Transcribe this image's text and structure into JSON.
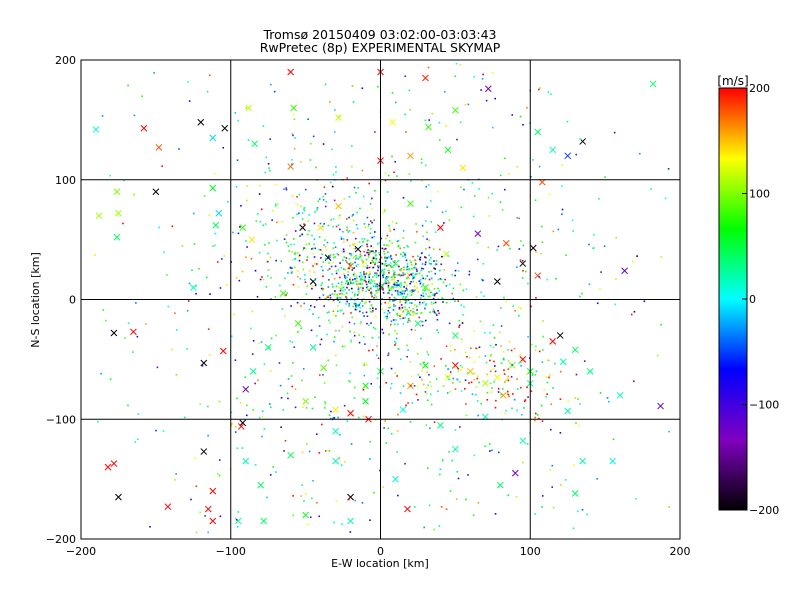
{
  "chart_data": {
    "type": "scatter",
    "title": "Tromsø 20150409 03:02:00-03:03:43",
    "subtitle": "RwPretec (8p) EXPERIMENTAL SKYMAP",
    "xlabel": "E-W location [km]",
    "ylabel": "N-S location [km]",
    "xlim": [
      -200,
      200
    ],
    "ylim": [
      -200,
      200
    ],
    "x_ticks": [
      -200,
      -100,
      0,
      100,
      200
    ],
    "y_ticks": [
      -200,
      -100,
      0,
      100,
      200
    ],
    "x_tick_labels": [
      "−200",
      "−100",
      "0",
      "100",
      "200"
    ],
    "y_tick_labels": [
      "−200",
      "−100",
      "0",
      "100",
      "200"
    ],
    "grid": true,
    "marker_types": [
      "dot",
      "x"
    ],
    "colorbar": {
      "label": "[m/s]",
      "range": [
        -200,
        200
      ],
      "ticks": [
        200,
        100,
        0,
        -100,
        -200
      ],
      "tick_labels": [
        "200",
        "100",
        "0",
        "−100",
        "−200"
      ],
      "colors": [
        "#000000",
        "#8000c0",
        "#0000ff",
        "#00ffff",
        "#00ff00",
        "#ffff00",
        "#ff0000"
      ]
    },
    "points": [
      {
        "x": -188,
        "y": 70,
        "v": 110,
        "m": "x"
      },
      {
        "x": -176,
        "y": 90,
        "v": 100,
        "m": "x"
      },
      {
        "x": -175,
        "y": 72,
        "v": 110,
        "m": "x"
      },
      {
        "x": -176,
        "y": 52,
        "v": 40,
        "m": "x"
      },
      {
        "x": -190,
        "y": 142,
        "v": 10,
        "m": "x"
      },
      {
        "x": -158,
        "y": 143,
        "v": 200,
        "m": "x"
      },
      {
        "x": -148,
        "y": 127,
        "v": 180,
        "m": "x"
      },
      {
        "x": -112,
        "y": 135,
        "v": -10,
        "m": "x"
      },
      {
        "x": -104,
        "y": 143,
        "v": -200,
        "m": "x"
      },
      {
        "x": -88,
        "y": 160,
        "v": 120,
        "m": "x"
      },
      {
        "x": -84,
        "y": 130,
        "v": 40,
        "m": "x"
      },
      {
        "x": -120,
        "y": 148,
        "v": -200,
        "m": "x"
      },
      {
        "x": -150,
        "y": 90,
        "v": -200,
        "m": "x"
      },
      {
        "x": -112,
        "y": 93,
        "v": 60,
        "m": "x"
      },
      {
        "x": -108,
        "y": 72,
        "v": -10,
        "m": "x"
      },
      {
        "x": -110,
        "y": 62,
        "v": 40,
        "m": "x"
      },
      {
        "x": -60,
        "y": 111,
        "v": 170,
        "m": "x"
      },
      {
        "x": -28,
        "y": 78,
        "v": 150,
        "m": "x"
      },
      {
        "x": 20,
        "y": 80,
        "v": 80,
        "m": "x"
      },
      {
        "x": 40,
        "y": 60,
        "v": 200,
        "m": "x"
      },
      {
        "x": 72,
        "y": 176,
        "v": -130,
        "m": "x"
      },
      {
        "x": 50,
        "y": 158,
        "v": 80,
        "m": "x"
      },
      {
        "x": 30,
        "y": 185,
        "v": 190,
        "m": "x"
      },
      {
        "x": -60,
        "y": 190,
        "v": 200,
        "m": "x"
      },
      {
        "x": 0,
        "y": 190,
        "v": 200,
        "m": "x"
      },
      {
        "x": 105,
        "y": 140,
        "v": 40,
        "m": "x"
      },
      {
        "x": 115,
        "y": 125,
        "v": 20,
        "m": "x"
      },
      {
        "x": 125,
        "y": 120,
        "v": -50,
        "m": "x"
      },
      {
        "x": 135,
        "y": 132,
        "v": -200,
        "m": "x"
      },
      {
        "x": 182,
        "y": 180,
        "v": 40,
        "m": "x"
      },
      {
        "x": 108,
        "y": 98,
        "v": 180,
        "m": "x"
      },
      {
        "x": 102,
        "y": 43,
        "v": -200,
        "m": "x"
      },
      {
        "x": 84,
        "y": 47,
        "v": 180,
        "m": "x"
      },
      {
        "x": 65,
        "y": 55,
        "v": -130,
        "m": "x"
      },
      {
        "x": 44,
        "y": 38,
        "v": 120,
        "m": "x"
      },
      {
        "x": 78,
        "y": 15,
        "v": -200,
        "m": "x"
      },
      {
        "x": 95,
        "y": 30,
        "v": -200,
        "m": "x"
      },
      {
        "x": 105,
        "y": 20,
        "v": 180,
        "m": "x"
      },
      {
        "x": 163,
        "y": 24,
        "v": -120,
        "m": "x"
      },
      {
        "x": -125,
        "y": 10,
        "v": 20,
        "m": "x"
      },
      {
        "x": -92,
        "y": 60,
        "v": 80,
        "m": "x"
      },
      {
        "x": -86,
        "y": 50,
        "v": 140,
        "m": "x"
      },
      {
        "x": -178,
        "y": -28,
        "v": -200,
        "m": "x"
      },
      {
        "x": -165,
        "y": -27,
        "v": 200,
        "m": "x"
      },
      {
        "x": -118,
        "y": -53,
        "v": -200,
        "m": "x"
      },
      {
        "x": -105,
        "y": -43,
        "v": 200,
        "m": "x"
      },
      {
        "x": -90,
        "y": -75,
        "v": -150,
        "m": "x"
      },
      {
        "x": -92,
        "y": -103,
        "v": -200,
        "m": "x"
      },
      {
        "x": -93,
        "y": -106,
        "v": 200,
        "m": "x"
      },
      {
        "x": -55,
        "y": -20,
        "v": 80,
        "m": "x"
      },
      {
        "x": -45,
        "y": -40,
        "v": 30,
        "m": "x"
      },
      {
        "x": -38,
        "y": -57,
        "v": 90,
        "m": "x"
      },
      {
        "x": -50,
        "y": -85,
        "v": 100,
        "m": "x"
      },
      {
        "x": -30,
        "y": -92,
        "v": 140,
        "m": "x"
      },
      {
        "x": -10,
        "y": -72,
        "v": 70,
        "m": "x"
      },
      {
        "x": 0,
        "y": -60,
        "v": 50,
        "m": "x"
      },
      {
        "x": 15,
        "y": -92,
        "v": 10,
        "m": "x"
      },
      {
        "x": 20,
        "y": -72,
        "v": 160,
        "m": "x"
      },
      {
        "x": 30,
        "y": -55,
        "v": 60,
        "m": "x"
      },
      {
        "x": 45,
        "y": -65,
        "v": 130,
        "m": "x"
      },
      {
        "x": 50,
        "y": -55,
        "v": 200,
        "m": "x"
      },
      {
        "x": 60,
        "y": -60,
        "v": 150,
        "m": "x"
      },
      {
        "x": 70,
        "y": -70,
        "v": 110,
        "m": "x"
      },
      {
        "x": 78,
        "y": -65,
        "v": 130,
        "m": "x"
      },
      {
        "x": 82,
        "y": -80,
        "v": 160,
        "m": "x"
      },
      {
        "x": 88,
        "y": -55,
        "v": 100,
        "m": "x"
      },
      {
        "x": 95,
        "y": -50,
        "v": 200,
        "m": "x"
      },
      {
        "x": 100,
        "y": -60,
        "v": 50,
        "m": "x"
      },
      {
        "x": 115,
        "y": -35,
        "v": 200,
        "m": "x"
      },
      {
        "x": 120,
        "y": -30,
        "v": -200,
        "m": "x"
      },
      {
        "x": 122,
        "y": -52,
        "v": 20,
        "m": "x"
      },
      {
        "x": 130,
        "y": -42,
        "v": 40,
        "m": "x"
      },
      {
        "x": 140,
        "y": -60,
        "v": 30,
        "m": "x"
      },
      {
        "x": 160,
        "y": -80,
        "v": 20,
        "m": "x"
      },
      {
        "x": 187,
        "y": -89,
        "v": -120,
        "m": "x"
      },
      {
        "x": 125,
        "y": -93,
        "v": 20,
        "m": "x"
      },
      {
        "x": 100,
        "y": -70,
        "v": 30,
        "m": "x"
      },
      {
        "x": -10,
        "y": -85,
        "v": 60,
        "m": "x"
      },
      {
        "x": -20,
        "y": -95,
        "v": 200,
        "m": "x"
      },
      {
        "x": -8,
        "y": -100,
        "v": 200,
        "m": "x"
      },
      {
        "x": -30,
        "y": -110,
        "v": 20,
        "m": "x"
      },
      {
        "x": 40,
        "y": -105,
        "v": 30,
        "m": "x"
      },
      {
        "x": 70,
        "y": -98,
        "v": 10,
        "m": "x"
      },
      {
        "x": 95,
        "y": -118,
        "v": 20,
        "m": "x"
      },
      {
        "x": 90,
        "y": -145,
        "v": -130,
        "m": "x"
      },
      {
        "x": 135,
        "y": -135,
        "v": 20,
        "m": "x"
      },
      {
        "x": 155,
        "y": -135,
        "v": 10,
        "m": "x"
      },
      {
        "x": 130,
        "y": -162,
        "v": 40,
        "m": "x"
      },
      {
        "x": 80,
        "y": -155,
        "v": 40,
        "m": "x"
      },
      {
        "x": 10,
        "y": -150,
        "v": 10,
        "m": "x"
      },
      {
        "x": -20,
        "y": -165,
        "v": -200,
        "m": "x"
      },
      {
        "x": -20,
        "y": -185,
        "v": 20,
        "m": "x"
      },
      {
        "x": 18,
        "y": -175,
        "v": 200,
        "m": "x"
      },
      {
        "x": -50,
        "y": -180,
        "v": 60,
        "m": "x"
      },
      {
        "x": -78,
        "y": -185,
        "v": 40,
        "m": "x"
      },
      {
        "x": -95,
        "y": -185,
        "v": 30,
        "m": "x"
      },
      {
        "x": -115,
        "y": -175,
        "v": 200,
        "m": "x"
      },
      {
        "x": -112,
        "y": -185,
        "v": 200,
        "m": "x"
      },
      {
        "x": -112,
        "y": -160,
        "v": 200,
        "m": "x"
      },
      {
        "x": -118,
        "y": -127,
        "v": -200,
        "m": "x"
      },
      {
        "x": -142,
        "y": -173,
        "v": 200,
        "m": "x"
      },
      {
        "x": -175,
        "y": -165,
        "v": -200,
        "m": "x"
      },
      {
        "x": -178,
        "y": -137,
        "v": 200,
        "m": "x"
      },
      {
        "x": -182,
        "y": -140,
        "v": 200,
        "m": "x"
      },
      {
        "x": -90,
        "y": -135,
        "v": 20,
        "m": "x"
      },
      {
        "x": -80,
        "y": -155,
        "v": 40,
        "m": "x"
      },
      {
        "x": -60,
        "y": -130,
        "v": 40,
        "m": "x"
      },
      {
        "x": -30,
        "y": -135,
        "v": 20,
        "m": "x"
      },
      {
        "x": 50,
        "y": -125,
        "v": 20,
        "m": "x"
      },
      {
        "x": -20,
        "y": 28,
        "v": 180,
        "m": "x"
      },
      {
        "x": -35,
        "y": 35,
        "v": -200,
        "m": "x"
      },
      {
        "x": -45,
        "y": 15,
        "v": -200,
        "m": "x"
      },
      {
        "x": -40,
        "y": 60,
        "v": 140,
        "m": "x"
      },
      {
        "x": -52,
        "y": 60,
        "v": -200,
        "m": "x"
      },
      {
        "x": -15,
        "y": 42,
        "v": -200,
        "m": "x"
      },
      {
        "x": 10,
        "y": 30,
        "v": 40,
        "m": "x"
      },
      {
        "x": 12,
        "y": 12,
        "v": 20,
        "m": "x"
      },
      {
        "x": 0,
        "y": 10,
        "v": -150,
        "m": "x"
      },
      {
        "x": -15,
        "y": -5,
        "v": 20,
        "m": "x"
      },
      {
        "x": 30,
        "y": 10,
        "v": 80,
        "m": "x"
      },
      {
        "x": 25,
        "y": -20,
        "v": 40,
        "m": "x"
      },
      {
        "x": 50,
        "y": -30,
        "v": 40,
        "m": "x"
      },
      {
        "x": -65,
        "y": 5,
        "v": 80,
        "m": "x"
      },
      {
        "x": -75,
        "y": -40,
        "v": 40,
        "m": "x"
      },
      {
        "x": -85,
        "y": -60,
        "v": 30,
        "m": "x"
      },
      {
        "x": -58,
        "y": 160,
        "v": 80,
        "m": "x"
      },
      {
        "x": -28,
        "y": 152,
        "v": 120,
        "m": "x"
      },
      {
        "x": 8,
        "y": 148,
        "v": 130,
        "m": "x"
      },
      {
        "x": 32,
        "y": 144,
        "v": 80,
        "m": "x"
      },
      {
        "x": 45,
        "y": 125,
        "v": 60,
        "m": "x"
      },
      {
        "x": 55,
        "y": 110,
        "v": 140,
        "m": "x"
      },
      {
        "x": 20,
        "y": 120,
        "v": 160,
        "m": "x"
      },
      {
        "x": 0,
        "y": 116,
        "v": 200,
        "m": "x"
      }
    ]
  }
}
